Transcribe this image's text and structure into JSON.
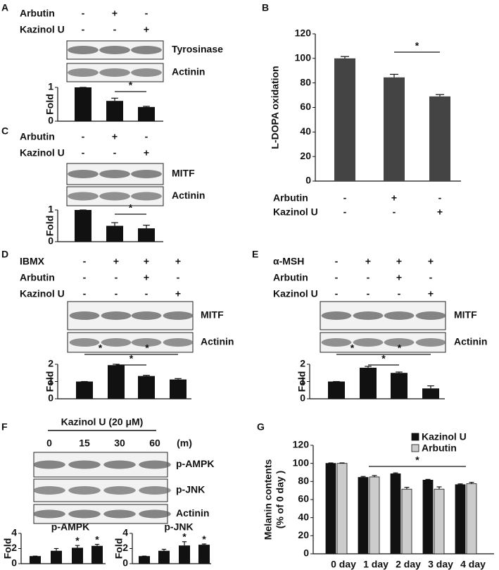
{
  "panels": [
    {
      "label": "A",
      "treatments": [
        {
          "name": "Arbutin",
          "signs": [
            "-",
            "+",
            "-"
          ]
        },
        {
          "name": "Kazinol U",
          "signs": [
            "-",
            "-",
            "+"
          ]
        }
      ],
      "bands": [
        "Tyrosinase",
        "Actinin"
      ]
    },
    {
      "label": "B",
      "treatments": [
        {
          "name": "Arbutin",
          "signs": [
            "-",
            "+",
            "-"
          ]
        },
        {
          "name": "Kazinol U",
          "signs": [
            "-",
            "-",
            "+"
          ]
        }
      ]
    },
    {
      "label": "C",
      "treatments": [
        {
          "name": "Arbutin",
          "signs": [
            "-",
            "+",
            "-"
          ]
        },
        {
          "name": "Kazinol U",
          "signs": [
            "-",
            "-",
            "+"
          ]
        }
      ],
      "bands": [
        "MITF",
        "Actinin"
      ]
    },
    {
      "label": "D",
      "treatments": [
        {
          "name": "IBMX",
          "signs": [
            "-",
            "+",
            "+",
            "+"
          ]
        },
        {
          "name": "Arbutin",
          "signs": [
            "-",
            "-",
            "+",
            "-"
          ]
        },
        {
          "name": "Kazinol U",
          "signs": [
            "-",
            "-",
            "-",
            "+"
          ]
        }
      ],
      "bands": [
        "MITF",
        "Actinin"
      ]
    },
    {
      "label": "E",
      "treatments": [
        {
          "name": "α-MSH",
          "signs": [
            "-",
            "+",
            "+",
            "+"
          ]
        },
        {
          "name": "Arbutin",
          "signs": [
            "-",
            "-",
            "+",
            "-"
          ]
        },
        {
          "name": "Kazinol U",
          "signs": [
            "-",
            "-",
            "-",
            "+"
          ]
        }
      ],
      "bands": [
        "MITF",
        "Actinin"
      ]
    },
    {
      "label": "F",
      "header": "Kazinol U (20 μM)",
      "times": [
        "0",
        "15",
        "30",
        "60"
      ],
      "time_unit": "(m)",
      "bands": [
        "p-AMPK",
        "p-JNK",
        "Actinin"
      ]
    },
    {
      "label": "G"
    }
  ],
  "chart_data": [
    {
      "type": "bar",
      "ylabel": "Fold",
      "values": [
        1,
        0.6,
        0.42
      ],
      "errors": [
        0,
        0.08,
        0.02
      ],
      "color": "#111111",
      "ylim": [
        0,
        1
      ],
      "yticks": [
        0,
        1
      ],
      "significance": [
        {
          "from": 1,
          "to": 2,
          "label": "*"
        }
      ]
    },
    {
      "type": "bar",
      "ylabel": "L-DOPA oxidation",
      "values": [
        100,
        84.5,
        69
      ],
      "errors": [
        1.5,
        2.5,
        1.5
      ],
      "color": "#444444",
      "ylim": [
        0,
        120
      ],
      "yticks": [
        0,
        20,
        40,
        60,
        80,
        100,
        120
      ],
      "significance": [
        {
          "from": 1,
          "to": 2,
          "label": "*"
        }
      ]
    },
    {
      "type": "bar",
      "ylabel": "Fold",
      "values": [
        1,
        0.5,
        0.42
      ],
      "errors": [
        0,
        0.1,
        0.1
      ],
      "color": "#111111",
      "ylim": [
        0,
        1
      ],
      "yticks": [
        0,
        1
      ],
      "significance": [
        {
          "from": 1,
          "to": 2,
          "label": "*"
        }
      ]
    },
    {
      "type": "bar",
      "ylabel": "Fold",
      "values": [
        1,
        1.95,
        1.32,
        1.12
      ],
      "errors": [
        0,
        0.05,
        0.04,
        0.05
      ],
      "color": "#111111",
      "ylim": [
        0,
        2
      ],
      "yticks": [
        0,
        1,
        2
      ],
      "significance": [
        {
          "from": 0,
          "to": 1,
          "label": "*"
        },
        {
          "from": 1,
          "to": 3,
          "label": "*"
        },
        {
          "from": 1,
          "to": 2,
          "label": "*"
        }
      ]
    },
    {
      "type": "bar",
      "ylabel": "Fold",
      "values": [
        1,
        1.8,
        1.5,
        0.6
      ],
      "errors": [
        0,
        0.08,
        0.05,
        0.15
      ],
      "color": "#111111",
      "ylim": [
        0,
        2
      ],
      "yticks": [
        0,
        1,
        2
      ],
      "significance": [
        {
          "from": 0,
          "to": 1,
          "label": "*"
        },
        {
          "from": 1,
          "to": 3,
          "label": "*"
        },
        {
          "from": 1,
          "to": 2,
          "label": "*"
        }
      ]
    },
    {
      "type": "bar",
      "title": "p-AMPK",
      "ylabel": "Fold",
      "values": [
        1,
        1.7,
        2.1,
        2.35
      ],
      "errors": [
        0,
        0.3,
        0.3,
        0.2
      ],
      "color": "#111111",
      "ylim": [
        0,
        4
      ],
      "yticks": [
        0,
        2,
        4
      ],
      "significance": [
        {
          "from": 2,
          "to": 2,
          "label": "*"
        },
        {
          "from": 3,
          "to": 3,
          "label": "*"
        }
      ]
    },
    {
      "type": "bar",
      "title": "p-JNK",
      "ylabel": "Fold",
      "values": [
        1,
        1.7,
        2.4,
        2.5
      ],
      "errors": [
        0,
        0.2,
        0.5,
        0.1
      ],
      "color": "#111111",
      "ylim": [
        0,
        4
      ],
      "yticks": [
        0,
        2,
        4
      ],
      "significance": [
        {
          "from": 2,
          "to": 2,
          "label": "*"
        },
        {
          "from": 3,
          "to": 3,
          "label": "*"
        }
      ]
    },
    {
      "type": "grouped-bar",
      "ylabel": [
        "Melanin contents",
        "(% of 0 day )"
      ],
      "categories": [
        "0 day",
        "1 day",
        "2 day",
        "3 day",
        "4 day"
      ],
      "series": [
        {
          "name": "Kazinol U",
          "color": "#111111",
          "values": [
            100,
            84.5,
            88.5,
            81.5,
            76.5
          ],
          "errors": [
            0.5,
            1,
            1,
            0.8,
            0.8
          ]
        },
        {
          "name": "Arbutin",
          "color": "#cccccc",
          "values": [
            100,
            85,
            71.5,
            71.5,
            77.5
          ],
          "errors": [
            0.5,
            1.5,
            2,
            2.5,
            1.5
          ]
        }
      ],
      "ylim": [
        0,
        120
      ],
      "yticks": [
        0,
        20,
        40,
        60,
        80,
        100,
        120
      ],
      "legend": "top-right",
      "significance": [
        {
          "from": 1,
          "to": 4,
          "label": "*"
        }
      ]
    }
  ]
}
